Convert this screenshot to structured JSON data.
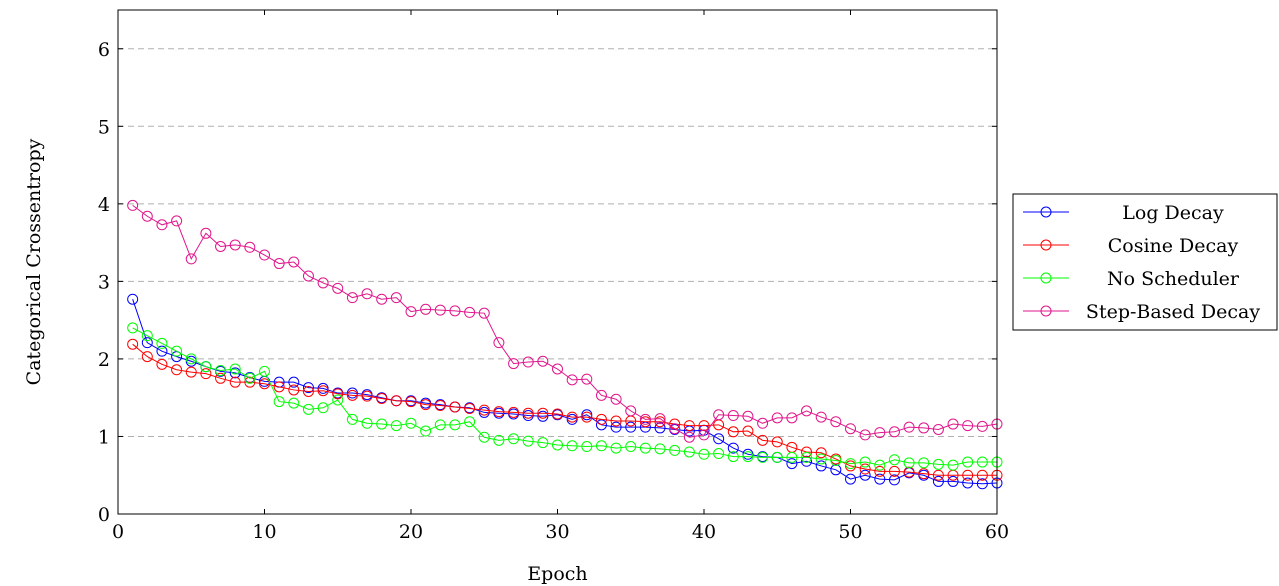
{
  "chart_data": {
    "type": "line",
    "title": "",
    "xlabel": "Epoch",
    "ylabel": "Categorical Crossentropy",
    "xlim": [
      0,
      60
    ],
    "ylim": [
      0,
      6.5
    ],
    "xticks": [
      0,
      10,
      20,
      30,
      40,
      50,
      60
    ],
    "yticks": [
      0,
      1,
      2,
      3,
      4,
      5,
      6
    ],
    "grid": "horizontal dashed",
    "legend_position": "outside-right",
    "marker": "open-circle",
    "x": [
      1,
      2,
      3,
      4,
      5,
      6,
      7,
      8,
      9,
      10,
      11,
      12,
      13,
      14,
      15,
      16,
      17,
      18,
      19,
      20,
      21,
      22,
      23,
      24,
      25,
      26,
      27,
      28,
      29,
      30,
      31,
      32,
      33,
      34,
      35,
      36,
      37,
      38,
      39,
      40,
      41,
      42,
      43,
      44,
      45,
      46,
      47,
      48,
      49,
      50,
      51,
      52,
      53,
      54,
      55,
      56,
      57,
      58,
      59,
      60
    ],
    "series": [
      {
        "name": "Log Decay",
        "color": "#0000ff",
        "values": [
          2.77,
          2.21,
          2.1,
          2.03,
          1.97,
          1.9,
          1.84,
          1.82,
          1.76,
          1.71,
          1.7,
          1.7,
          1.63,
          1.62,
          1.56,
          1.56,
          1.54,
          1.5,
          1.46,
          1.46,
          1.43,
          1.41,
          1.38,
          1.37,
          1.31,
          1.3,
          1.29,
          1.27,
          1.26,
          1.28,
          1.22,
          1.28,
          1.15,
          1.12,
          1.12,
          1.12,
          1.11,
          1.09,
          1.07,
          1.08,
          0.97,
          0.85,
          0.77,
          0.74,
          0.73,
          0.65,
          0.68,
          0.62,
          0.57,
          0.45,
          0.5,
          0.45,
          0.44,
          0.53,
          0.5,
          0.42,
          0.42,
          0.4,
          0.39,
          0.4
        ]
      },
      {
        "name": "Cosine Decay",
        "color": "#ff0000",
        "values": [
          2.19,
          2.03,
          1.93,
          1.86,
          1.83,
          1.81,
          1.75,
          1.7,
          1.7,
          1.68,
          1.64,
          1.6,
          1.58,
          1.59,
          1.55,
          1.53,
          1.52,
          1.49,
          1.46,
          1.45,
          1.41,
          1.4,
          1.38,
          1.36,
          1.34,
          1.32,
          1.31,
          1.3,
          1.3,
          1.29,
          1.25,
          1.25,
          1.22,
          1.2,
          1.2,
          1.19,
          1.19,
          1.16,
          1.14,
          1.14,
          1.15,
          1.06,
          1.07,
          0.95,
          0.93,
          0.86,
          0.8,
          0.79,
          0.71,
          0.62,
          0.58,
          0.55,
          0.55,
          0.54,
          0.52,
          0.5,
          0.5,
          0.5,
          0.5,
          0.5
        ]
      },
      {
        "name": "No Scheduler",
        "color": "#00ff00",
        "values": [
          2.4,
          2.3,
          2.2,
          2.1,
          2.0,
          1.9,
          1.85,
          1.87,
          1.75,
          1.84,
          1.45,
          1.43,
          1.35,
          1.37,
          1.47,
          1.22,
          1.17,
          1.16,
          1.14,
          1.17,
          1.07,
          1.15,
          1.15,
          1.19,
          0.99,
          0.95,
          0.97,
          0.94,
          0.92,
          0.89,
          0.88,
          0.87,
          0.88,
          0.85,
          0.87,
          0.85,
          0.84,
          0.82,
          0.8,
          0.77,
          0.78,
          0.74,
          0.74,
          0.73,
          0.73,
          0.73,
          0.73,
          0.71,
          0.69,
          0.65,
          0.67,
          0.63,
          0.7,
          0.66,
          0.66,
          0.64,
          0.63,
          0.67,
          0.67,
          0.67
        ]
      },
      {
        "name": "Step-Based Decay",
        "color": "#e0168c",
        "values": [
          3.98,
          3.84,
          3.73,
          3.78,
          3.29,
          3.62,
          3.45,
          3.47,
          3.44,
          3.34,
          3.23,
          3.25,
          3.07,
          2.98,
          2.91,
          2.79,
          2.84,
          2.77,
          2.79,
          2.61,
          2.64,
          2.63,
          2.62,
          2.6,
          2.59,
          2.21,
          1.94,
          1.96,
          1.97,
          1.87,
          1.73,
          1.74,
          1.53,
          1.48,
          1.33,
          1.22,
          1.23,
          1.1,
          0.99,
          1.02,
          1.28,
          1.27,
          1.26,
          1.17,
          1.24,
          1.24,
          1.33,
          1.25,
          1.19,
          1.1,
          1.02,
          1.05,
          1.06,
          1.12,
          1.11,
          1.09,
          1.16,
          1.14,
          1.13,
          1.16
        ]
      }
    ]
  }
}
